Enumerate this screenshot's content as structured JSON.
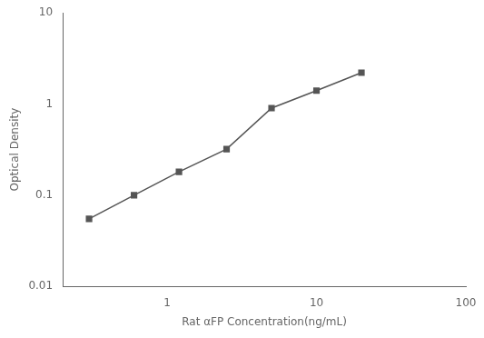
{
  "chart_data": {
    "type": "line",
    "x": [
      0.3,
      0.6,
      1.2,
      2.5,
      5.0,
      10.0,
      20.0
    ],
    "values": [
      0.055,
      0.1,
      0.18,
      0.32,
      0.9,
      1.4,
      2.2
    ],
    "color": "#555555",
    "marker": "square",
    "line_style": "solid",
    "xlabel": "Rat αFP Concentration(ng/mL)",
    "ylabel": "Optical Density",
    "xlim": [
      0.2,
      100
    ],
    "ylim": [
      0.01,
      10
    ],
    "xticks": [
      1,
      10,
      100
    ],
    "yticks": [
      0.01,
      0.1,
      1,
      10
    ],
    "log": true,
    "grid": false
  }
}
